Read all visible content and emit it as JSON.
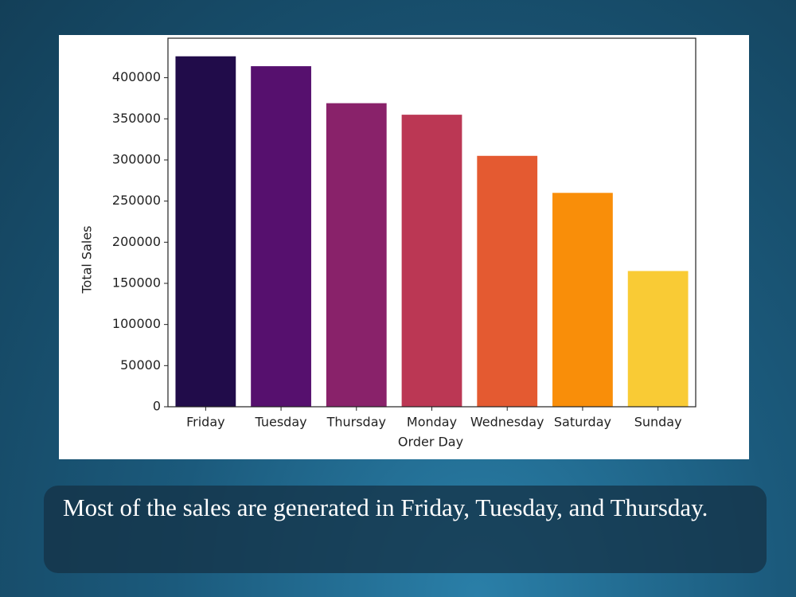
{
  "chart_data": {
    "type": "bar",
    "x_label": "Order Day",
    "y_label": "Total Sales",
    "categories": [
      "Friday",
      "Tuesday",
      "Thursday",
      "Monday",
      "Wednesday",
      "Saturday",
      "Sunday"
    ],
    "values": [
      426000,
      414000,
      369000,
      355000,
      305000,
      260000,
      165000
    ],
    "colors": [
      "#210c4a",
      "#56106e",
      "#89226a",
      "#bb3754",
      "#e45a31",
      "#f98e09",
      "#f9cb35"
    ],
    "ylim": [
      0,
      448000
    ],
    "yticks": [
      0,
      50000,
      100000,
      150000,
      200000,
      250000,
      300000,
      350000,
      400000
    ]
  },
  "caption": "Most of the sales are generated in Friday, Tuesday, and Thursday."
}
